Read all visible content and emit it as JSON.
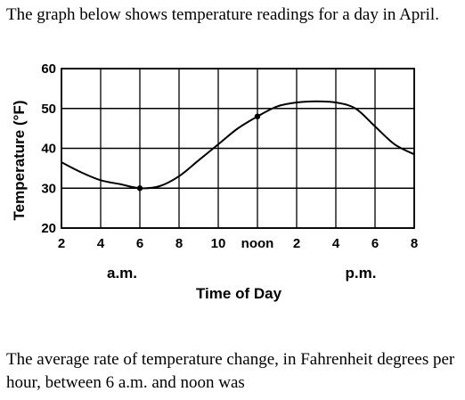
{
  "intro_text": "The graph below shows temperature readings for a day in April.",
  "question_text": "The average rate of temperature change, in Fahrenheit degrees per hour, between 6 a.m. and noon was",
  "chart_data": {
    "type": "line",
    "title": "",
    "xlabel": "Time of Day",
    "ylabel": "Temperature (°F)",
    "x_ticks": [
      "2",
      "4",
      "6",
      "8",
      "10",
      "noon",
      "2",
      "4",
      "6",
      "8"
    ],
    "x_period_labels": [
      "a.m.",
      "p.m."
    ],
    "y_ticks": [
      20,
      30,
      40,
      50,
      60
    ],
    "ylim": [
      20,
      60
    ],
    "x_hours": [
      2,
      20
    ],
    "grid": true,
    "series": [
      {
        "x": [
          2,
          3,
          4,
          5,
          6,
          7,
          8,
          9,
          10,
          11,
          12,
          13,
          14,
          15,
          16,
          17,
          18,
          19,
          20
        ],
        "values": [
          36.5,
          34,
          32,
          31,
          30,
          30.5,
          33,
          37,
          41,
          45,
          48,
          50.5,
          51.5,
          51.8,
          51.5,
          50,
          45.5,
          41,
          38.5
        ]
      }
    ],
    "marked_points": [
      {
        "x": 6,
        "y": 30
      },
      {
        "x": 12,
        "y": 48
      }
    ]
  }
}
